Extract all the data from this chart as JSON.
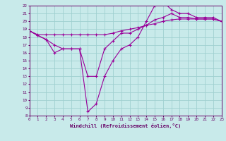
{
  "xlabel": "Windchill (Refroidissement éolien,°C)",
  "background_color": "#c8eaea",
  "grid_color": "#a0d0d0",
  "line_color": "#990099",
  "xmin": 0,
  "xmax": 23,
  "ymin": 8,
  "ymax": 22,
  "yticks": [
    8,
    9,
    10,
    11,
    12,
    13,
    14,
    15,
    16,
    17,
    18,
    19,
    20,
    21,
    22
  ],
  "xticks": [
    0,
    1,
    2,
    3,
    4,
    5,
    6,
    7,
    8,
    9,
    10,
    11,
    12,
    13,
    14,
    15,
    16,
    17,
    18,
    19,
    20,
    21,
    22,
    23
  ],
  "line1_x": [
    0,
    1,
    2,
    3,
    4,
    5,
    6,
    7,
    8,
    9,
    10,
    11,
    12,
    13,
    14,
    15,
    16,
    17,
    18,
    19,
    20,
    21,
    22,
    23
  ],
  "line1_y": [
    18.8,
    18.3,
    18.3,
    18.3,
    18.3,
    18.3,
    18.3,
    18.3,
    18.3,
    18.3,
    18.5,
    18.8,
    19.0,
    19.2,
    19.5,
    19.7,
    20.0,
    20.2,
    20.3,
    20.3,
    20.3,
    20.3,
    20.3,
    20.0
  ],
  "line2_x": [
    0,
    1,
    2,
    3,
    4,
    5,
    6,
    7,
    8,
    9,
    10,
    11,
    12,
    13,
    14,
    15,
    16,
    17,
    18,
    19,
    20,
    21,
    22,
    23
  ],
  "line2_y": [
    18.8,
    18.2,
    17.7,
    17.0,
    16.5,
    16.5,
    16.5,
    13.0,
    13.0,
    16.5,
    17.5,
    18.5,
    18.5,
    19.0,
    19.5,
    20.2,
    20.5,
    21.0,
    20.5,
    20.5,
    20.3,
    20.3,
    20.3,
    20.0
  ],
  "line3_x": [
    0,
    1,
    2,
    3,
    4,
    5,
    6,
    7,
    8,
    9,
    10,
    11,
    12,
    13,
    14,
    15,
    16,
    17,
    18,
    19,
    20,
    21,
    22,
    23
  ],
  "line3_y": [
    18.8,
    18.2,
    17.7,
    16.0,
    16.5,
    16.5,
    16.5,
    8.5,
    9.5,
    13.0,
    15.0,
    16.5,
    17.0,
    18.0,
    20.0,
    22.0,
    22.5,
    21.5,
    21.0,
    21.0,
    20.5,
    20.5,
    20.5,
    20.0
  ]
}
